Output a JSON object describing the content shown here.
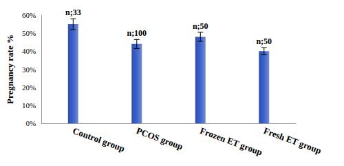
{
  "chart_data": {
    "type": "bar",
    "y_label": "Pregnancy rate %",
    "categories": [
      "Control group",
      "PCOS group",
      "Frozen ET group",
      "Fresh ET group"
    ],
    "values": [
      55,
      44,
      48,
      40
    ],
    "errors": [
      3,
      2.5,
      2.5,
      2
    ],
    "annotations": [
      "n;33",
      "n;100",
      "n;50",
      "n;50"
    ],
    "color": "#2f4fa8",
    "ylim": [
      0,
      60
    ],
    "yticks": [
      {
        "value": 0,
        "label": "0%"
      },
      {
        "value": 10,
        "label": "10%"
      },
      {
        "value": 20,
        "label": "20%"
      },
      {
        "value": 30,
        "label": "30%"
      },
      {
        "value": 40,
        "label": "40%"
      },
      {
        "value": 50,
        "label": "50%"
      },
      {
        "value": 60,
        "label": "60%"
      }
    ],
    "grid": false
  }
}
